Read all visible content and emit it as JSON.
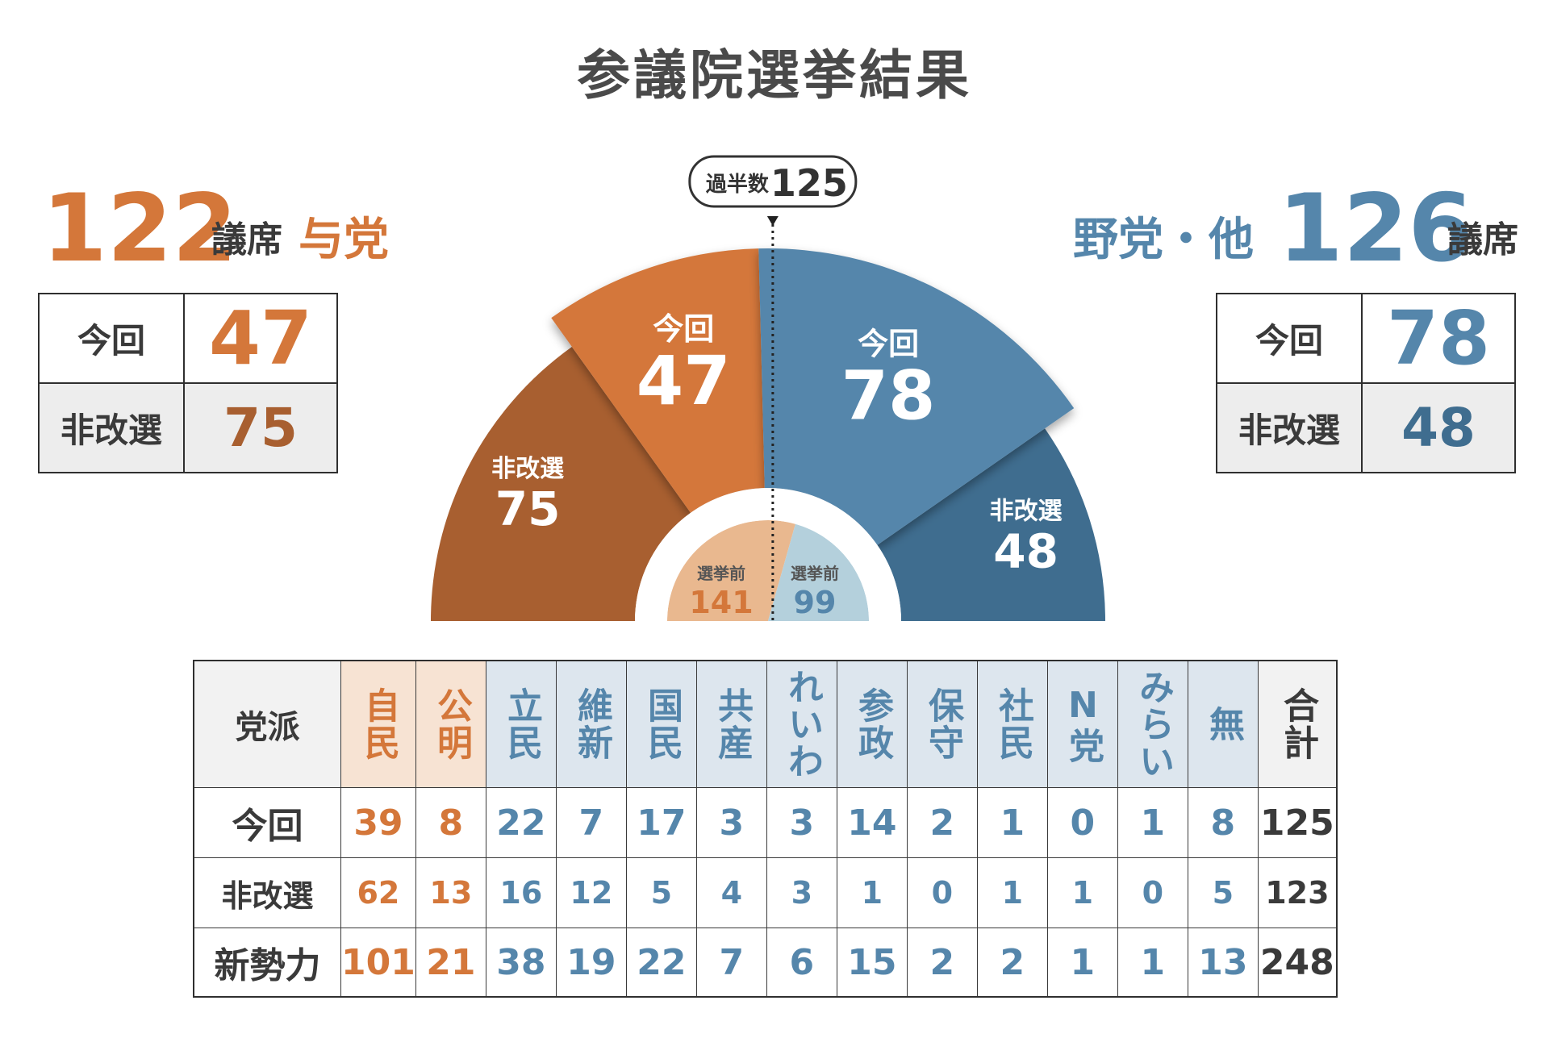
{
  "title": "参議院選挙結果",
  "colors": {
    "ruling": "#d4773a",
    "ruling_dark": "#a85f30",
    "ruling_light": "#e9b88f",
    "ruling_header_bg": "#f7e3d3",
    "opposition": "#5586ab",
    "opposition_dark": "#3f6d8f",
    "opposition_light": "#b4d0dc",
    "opposition_header_bg": "#dde6ee",
    "neutral_text": "#3a3a3a"
  },
  "left": {
    "total": "122",
    "unit": "議席",
    "group": "与党",
    "box": {
      "row1_label": "今回",
      "row1_value": "47",
      "row2_label": "非改選",
      "row2_value": "75"
    }
  },
  "right": {
    "group": "野党・他",
    "total": "126",
    "unit": "議席",
    "box": {
      "row1_label": "今回",
      "row1_value": "78",
      "row2_label": "非改選",
      "row2_value": "48"
    }
  },
  "chart_data": {
    "type": "pie",
    "majority_label": "過半数",
    "majority_value": 125,
    "total_seats": 248,
    "segments": [
      {
        "label": "非改選",
        "value": 75,
        "side": "ruling",
        "ring": "outer"
      },
      {
        "label": "今回",
        "value": 47,
        "side": "ruling",
        "ring": "elected"
      },
      {
        "label": "今回",
        "value": 78,
        "side": "opposition",
        "ring": "elected"
      },
      {
        "label": "非改選",
        "value": 48,
        "side": "opposition",
        "ring": "outer"
      }
    ],
    "before_election": [
      {
        "label": "選挙前",
        "value": 141,
        "side": "ruling"
      },
      {
        "label": "選挙前",
        "value": 99,
        "side": "opposition"
      }
    ]
  },
  "table": {
    "corner": "党派",
    "parties": [
      {
        "name": "自民",
        "side": "ruling",
        "current": "39",
        "not_up": "62",
        "new": "101"
      },
      {
        "name": "公明",
        "side": "ruling",
        "current": "8",
        "not_up": "13",
        "new": "21"
      },
      {
        "name": "立民",
        "side": "opposition",
        "current": "22",
        "not_up": "16",
        "new": "38"
      },
      {
        "name": "維新",
        "side": "opposition",
        "current": "7",
        "not_up": "12",
        "new": "19"
      },
      {
        "name": "国民",
        "side": "opposition",
        "current": "17",
        "not_up": "5",
        "new": "22"
      },
      {
        "name": "共産",
        "side": "opposition",
        "current": "3",
        "not_up": "4",
        "new": "7"
      },
      {
        "name": "れいわ",
        "side": "opposition",
        "current": "3",
        "not_up": "3",
        "new": "6"
      },
      {
        "name": "参政",
        "side": "opposition",
        "current": "14",
        "not_up": "1",
        "new": "15"
      },
      {
        "name": "保守",
        "side": "opposition",
        "current": "2",
        "not_up": "0",
        "new": "2"
      },
      {
        "name": "社民",
        "side": "opposition",
        "current": "1",
        "not_up": "1",
        "new": "2"
      },
      {
        "name": "N党",
        "side": "opposition",
        "current": "0",
        "not_up": "1",
        "new": "1"
      },
      {
        "name": "みらい",
        "side": "opposition",
        "current": "1",
        "not_up": "0",
        "new": "1"
      },
      {
        "name": "無",
        "side": "opposition",
        "current": "8",
        "not_up": "5",
        "new": "13"
      }
    ],
    "total": {
      "name": "合計",
      "current": "125",
      "not_up": "123",
      "new": "248"
    },
    "row_labels": {
      "current": "今回",
      "not_up": "非改選",
      "new": "新勢力"
    }
  }
}
